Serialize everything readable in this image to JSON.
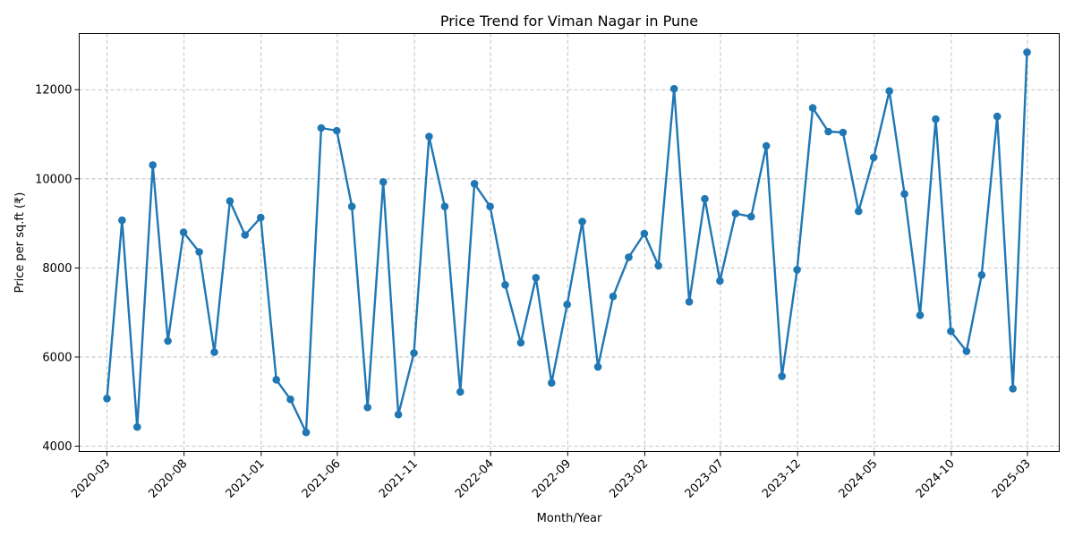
{
  "chart_data": {
    "type": "line",
    "title": "Price Trend for Viman Nagar in Pune",
    "xlabel": "Month/Year",
    "ylabel": "Price per sq.ft (₹)",
    "color": "#1f77b4",
    "grid": true,
    "x_range": [
      "2020-01-06",
      "2025-05-03"
    ],
    "ylim": [
      3880,
      13260
    ],
    "y_ticks": [
      4000,
      6000,
      8000,
      10000,
      12000
    ],
    "x_ticks": [
      "2020-03",
      "2020-08",
      "2021-01",
      "2021-06",
      "2021-11",
      "2022-04",
      "2022-09",
      "2023-02",
      "2023-07",
      "2023-12",
      "2024-05",
      "2024-10",
      "2025-03"
    ],
    "series": [
      {
        "x": [
          "2020-03-01",
          "2020-03-31",
          "2020-04-30",
          "2020-05-31",
          "2020-06-30",
          "2020-07-31",
          "2020-08-31",
          "2020-09-30",
          "2020-10-31",
          "2020-11-30",
          "2020-12-31",
          "2021-01-31",
          "2021-02-28",
          "2021-03-31",
          "2021-04-30",
          "2021-05-31",
          "2021-06-30",
          "2021-07-31",
          "2021-08-31",
          "2021-09-30",
          "2021-10-31",
          "2021-11-30",
          "2021-12-31",
          "2022-01-31",
          "2022-02-28",
          "2022-03-31",
          "2022-04-30",
          "2022-05-31",
          "2022-06-30",
          "2022-07-31",
          "2022-08-31",
          "2022-09-30",
          "2022-10-31",
          "2022-11-30",
          "2022-12-31",
          "2023-01-31",
          "2023-02-28",
          "2023-03-31",
          "2023-04-30",
          "2023-05-31",
          "2023-06-30",
          "2023-07-31",
          "2023-08-31",
          "2023-09-30",
          "2023-10-31",
          "2023-11-30",
          "2023-12-31",
          "2024-01-31",
          "2024-02-29",
          "2024-03-31",
          "2024-04-30",
          "2024-05-31",
          "2024-06-30",
          "2024-07-31",
          "2024-08-31",
          "2024-09-30",
          "2024-10-31",
          "2024-11-30",
          "2024-12-31",
          "2025-01-31",
          "2025-02-28"
        ],
        "values": [
          5070,
          9070,
          4430,
          10310,
          6360,
          8800,
          8360,
          6110,
          9500,
          8740,
          9130,
          5490,
          5050,
          4310,
          11140,
          11080,
          9380,
          4870,
          9930,
          4710,
          6090,
          10950,
          9380,
          5220,
          9890,
          9380,
          7620,
          6320,
          7780,
          5420,
          7180,
          9040,
          5780,
          7360,
          8240,
          8770,
          8050,
          12020,
          7240,
          9550,
          7710,
          9220,
          9150,
          10740,
          5570,
          7960,
          11590,
          11060,
          11040,
          9270,
          10480,
          11970,
          9660,
          6940,
          11340,
          6580,
          6130,
          7840,
          11400,
          5290,
          12840
        ]
      }
    ]
  }
}
